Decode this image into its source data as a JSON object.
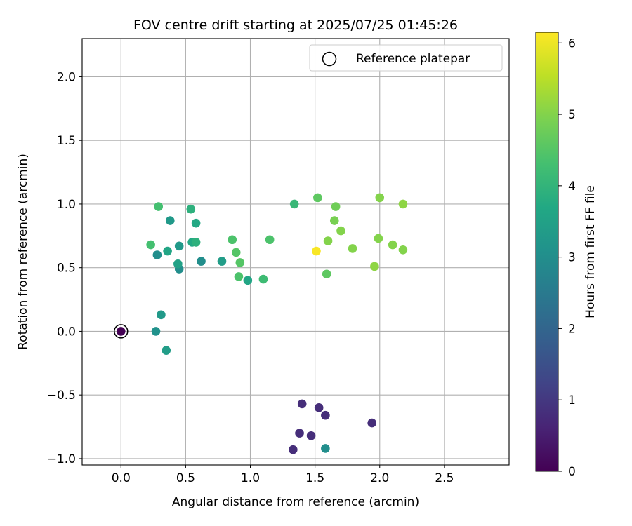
{
  "chart_data": {
    "type": "scatter",
    "title": "FOV centre drift starting at 2025/07/25 01:45:26",
    "xlabel": "Angular distance from reference (arcmin)",
    "ylabel": "Rotation from reference (arcmin)",
    "xlim": [
      -0.3,
      3.0
    ],
    "ylim": [
      -1.05,
      2.3
    ],
    "xticks": [
      0.0,
      0.5,
      1.0,
      1.5,
      2.0,
      2.5
    ],
    "xtick_labels": [
      "0.0",
      "0.5",
      "1.0",
      "1.5",
      "2.0",
      "2.5"
    ],
    "yticks": [
      -1.0,
      -0.5,
      0.0,
      0.5,
      1.0,
      1.5,
      2.0
    ],
    "ytick_labels": [
      "−1.0",
      "−0.5",
      "0.0",
      "0.5",
      "1.0",
      "1.5",
      "2.0"
    ],
    "grid": true,
    "legend": {
      "position": "top-right",
      "entries": [
        "Reference platepar"
      ]
    },
    "reference_point": {
      "x": 0.0,
      "y": 0.0,
      "hours": 0.0
    },
    "colorbar": {
      "label": "Hours from first FF file",
      "colormap": "viridis",
      "range": [
        0,
        6.15
      ],
      "ticks": [
        0,
        1,
        2,
        3,
        4,
        5,
        6
      ],
      "tick_labels": [
        "0",
        "1",
        "2",
        "3",
        "4",
        "5",
        "6"
      ]
    },
    "points": [
      {
        "x": 1.33,
        "y": -0.93,
        "hours": 0.8
      },
      {
        "x": 1.38,
        "y": -0.8,
        "hours": 0.8
      },
      {
        "x": 1.4,
        "y": -0.57,
        "hours": 0.8
      },
      {
        "x": 1.47,
        "y": -0.82,
        "hours": 0.8
      },
      {
        "x": 1.53,
        "y": -0.6,
        "hours": 0.8
      },
      {
        "x": 1.58,
        "y": -0.66,
        "hours": 0.8
      },
      {
        "x": 1.94,
        "y": -0.72,
        "hours": 0.8
      },
      {
        "x": 1.58,
        "y": -0.92,
        "hours": 3.0
      },
      {
        "x": 0.27,
        "y": 0.0,
        "hours": 3.1
      },
      {
        "x": 0.31,
        "y": 0.13,
        "hours": 3.3
      },
      {
        "x": 0.35,
        "y": -0.15,
        "hours": 3.4
      },
      {
        "x": 0.28,
        "y": 0.6,
        "hours": 3.0
      },
      {
        "x": 0.45,
        "y": 0.49,
        "hours": 3.0
      },
      {
        "x": 0.62,
        "y": 0.55,
        "hours": 3.0
      },
      {
        "x": 0.45,
        "y": 0.67,
        "hours": 3.3
      },
      {
        "x": 0.44,
        "y": 0.53,
        "hours": 3.5
      },
      {
        "x": 0.36,
        "y": 0.63,
        "hours": 3.6
      },
      {
        "x": 0.38,
        "y": 0.87,
        "hours": 3.3
      },
      {
        "x": 0.78,
        "y": 0.55,
        "hours": 3.4
      },
      {
        "x": 0.55,
        "y": 0.7,
        "hours": 3.7
      },
      {
        "x": 0.58,
        "y": 0.7,
        "hours": 3.9
      },
      {
        "x": 0.58,
        "y": 0.85,
        "hours": 3.7
      },
      {
        "x": 0.54,
        "y": 0.96,
        "hours": 3.9
      },
      {
        "x": 0.98,
        "y": 0.4,
        "hours": 3.6
      },
      {
        "x": 0.29,
        "y": 0.98,
        "hours": 4.3
      },
      {
        "x": 0.23,
        "y": 0.68,
        "hours": 4.3
      },
      {
        "x": 0.86,
        "y": 0.72,
        "hours": 4.4
      },
      {
        "x": 0.89,
        "y": 0.62,
        "hours": 4.5
      },
      {
        "x": 0.91,
        "y": 0.43,
        "hours": 4.4
      },
      {
        "x": 0.92,
        "y": 0.54,
        "hours": 4.5
      },
      {
        "x": 1.1,
        "y": 0.41,
        "hours": 4.2
      },
      {
        "x": 1.15,
        "y": 0.72,
        "hours": 4.4
      },
      {
        "x": 1.34,
        "y": 1.0,
        "hours": 4.1
      },
      {
        "x": 1.52,
        "y": 1.05,
        "hours": 4.6
      },
      {
        "x": 1.66,
        "y": 0.98,
        "hours": 4.8
      },
      {
        "x": 1.65,
        "y": 0.87,
        "hours": 4.9
      },
      {
        "x": 1.7,
        "y": 0.79,
        "hours": 5.0
      },
      {
        "x": 1.6,
        "y": 0.71,
        "hours": 5.0
      },
      {
        "x": 1.59,
        "y": 0.45,
        "hours": 4.6
      },
      {
        "x": 1.79,
        "y": 0.65,
        "hours": 5.0
      },
      {
        "x": 1.51,
        "y": 0.63,
        "hours": 6.1
      },
      {
        "x": 2.0,
        "y": 1.05,
        "hours": 5.0
      },
      {
        "x": 2.18,
        "y": 1.0,
        "hours": 5.1
      },
      {
        "x": 1.99,
        "y": 0.73,
        "hours": 5.0
      },
      {
        "x": 2.1,
        "y": 0.68,
        "hours": 5.0
      },
      {
        "x": 2.18,
        "y": 0.64,
        "hours": 5.0
      },
      {
        "x": 1.96,
        "y": 0.51,
        "hours": 5.1
      }
    ]
  }
}
